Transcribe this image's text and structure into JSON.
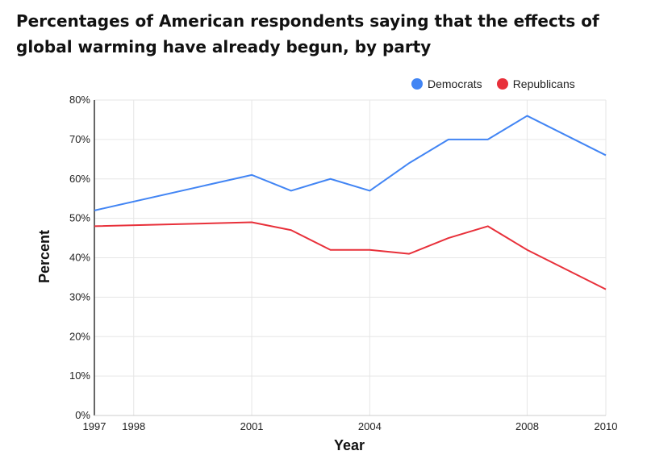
{
  "title": "Percentages of American respondents saying that the effects of global warming have already begun, by party",
  "colors": {
    "democrats": "#4285f4",
    "republicans": "#e8303a",
    "grid": "#e6e6e6",
    "axis": "#333333"
  },
  "chart_data": {
    "type": "line",
    "title": "Percentages of American respondents saying that the effects of global warming have already begun, by party",
    "xlabel": "Year",
    "ylabel": "Percent",
    "xlim": [
      1997,
      2010
    ],
    "ylim": [
      0,
      80
    ],
    "x_ticks": [
      1997,
      1998,
      2001,
      2004,
      2008,
      2010
    ],
    "y_ticks": [
      0,
      10,
      20,
      30,
      40,
      50,
      60,
      70,
      80
    ],
    "y_tick_suffix": "%",
    "grid": true,
    "legend_position": "top-right",
    "series": [
      {
        "name": "Democrats",
        "color": "#4285f4",
        "x": [
          1997,
          2001,
          2002,
          2003,
          2004,
          2005,
          2006,
          2007,
          2008,
          2010
        ],
        "y": [
          52,
          61,
          57,
          60,
          57,
          64,
          70,
          70,
          76,
          66
        ]
      },
      {
        "name": "Republicans",
        "color": "#e8303a",
        "x": [
          1997,
          2001,
          2002,
          2003,
          2004,
          2005,
          2006,
          2007,
          2008,
          2010
        ],
        "y": [
          48,
          49,
          47,
          42,
          42,
          41,
          45,
          48,
          42,
          32
        ]
      }
    ]
  }
}
